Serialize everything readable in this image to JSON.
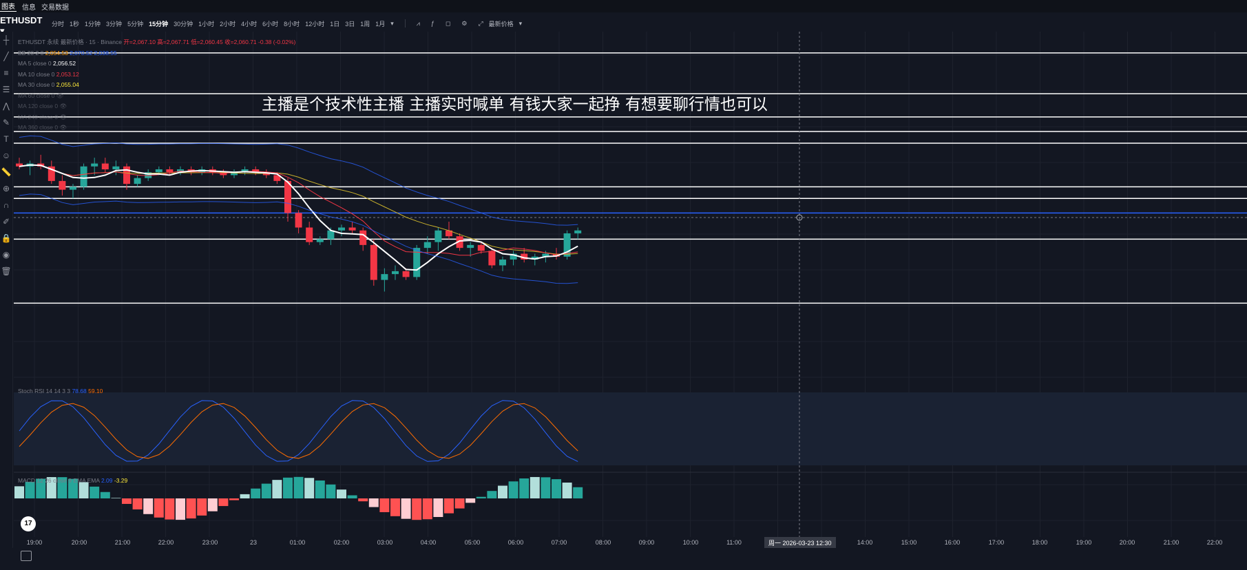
{
  "top_tabs": [
    "图表",
    "信息",
    "交易数据"
  ],
  "symbol": {
    "name": "ETHUSDT",
    "sub": "永续"
  },
  "toolbar": {
    "timeframes": [
      "分时",
      "1秒",
      "1分钟",
      "3分钟",
      "5分钟",
      "15分钟",
      "30分钟",
      "1小时",
      "2小时",
      "4小时",
      "6小时",
      "8小时",
      "12小时",
      "1日",
      "3日",
      "1周",
      "1月"
    ],
    "active": "15分钟",
    "price_type": "最新价格"
  },
  "legend": {
    "header": "ETHUSDT 永续 最新价格 · 15 · Binance",
    "ohlc": "开=2,067.10 高=2,067.71 低=2,060.45 收=2,060.71 -0.38 (-0.02%)",
    "bb": {
      "label": "BB 20 2 0",
      "v1": "2,054.53",
      "v2": "2,070.52",
      "v3": "2,038.55"
    },
    "ma5": {
      "label": "MA 5 close 0",
      "value": "2,056.52"
    },
    "ma10": {
      "label": "MA 10 close 0",
      "value": "2,053.12"
    },
    "ma30": {
      "label": "MA 30 close 0",
      "value": "2,055.04"
    },
    "ma60": {
      "label": "MA 60 close 0"
    },
    "ma120": {
      "label": "MA 120 close 0"
    },
    "ma240": {
      "label": "MA 240 close 0"
    },
    "ma360": {
      "label": "MA 360 close 0"
    }
  },
  "overlay_text": "主播是个技术性主播 主播实时喊单 有钱大家一起挣 有想要聊行情也可以",
  "stoch": {
    "label": "Stoch RSI 14 14 3 3",
    "k": "78.68",
    "d": "59.10"
  },
  "macd": {
    "label": "MACD 12 26 close 9 EMA EMA",
    "v1": "2.09",
    "v2": "-3.29"
  },
  "time_axis": [
    "19:00",
    "20:00",
    "21:00",
    "22:00",
    "23:00",
    "23",
    "01:00",
    "02:00",
    "03:00",
    "04:00",
    "05:00",
    "06:00",
    "07:00",
    "08:00",
    "09:00",
    "10:00",
    "11:00",
    "14:00",
    "15:00",
    "16:00",
    "17:00",
    "18:00",
    "19:00",
    "20:00",
    "21:00",
    "22:00"
  ],
  "crosshair_time": "周一 2026-03-23   12:30",
  "logo_text": "17",
  "colors": {
    "up": "#26a69a",
    "down": "#f23645",
    "bg": "#131722"
  },
  "chart_data": {
    "type": "candlestick",
    "candles_ohlc": [
      [
        2070,
        2072,
        2068,
        2069
      ],
      [
        2069,
        2071,
        2066,
        2070
      ],
      [
        2070,
        2073,
        2068,
        2069
      ],
      [
        2069,
        2071,
        2063,
        2064
      ],
      [
        2064,
        2066,
        2059,
        2061
      ],
      [
        2061,
        2063,
        2058,
        2062
      ],
      [
        2062,
        2070,
        2061,
        2069
      ],
      [
        2069,
        2072,
        2066,
        2070
      ],
      [
        2070,
        2072,
        2067,
        2068
      ],
      [
        2068,
        2071,
        2066,
        2069
      ],
      [
        2069,
        2070,
        2061,
        2063
      ],
      [
        2063,
        2066,
        2062,
        2065
      ],
      [
        2065,
        2068,
        2064,
        2067
      ],
      [
        2067,
        2069,
        2066,
        2068
      ],
      [
        2068,
        2069,
        2066,
        2067
      ],
      [
        2067,
        2069,
        2066,
        2068
      ],
      [
        2068,
        2069,
        2066,
        2067
      ],
      [
        2067,
        2069,
        2066,
        2068
      ],
      [
        2068,
        2069,
        2066,
        2067
      ],
      [
        2067,
        2068,
        2065,
        2066
      ],
      [
        2066,
        2068,
        2065,
        2067
      ],
      [
        2067,
        2069,
        2066,
        2068
      ],
      [
        2068,
        2069,
        2066,
        2067
      ],
      [
        2067,
        2068,
        2065,
        2066
      ],
      [
        2066,
        2067,
        2063,
        2064
      ],
      [
        2064,
        2065,
        2050,
        2053
      ],
      [
        2053,
        2054,
        2046,
        2048
      ],
      [
        2048,
        2050,
        2042,
        2043
      ],
      [
        2043,
        2045,
        2042,
        2044
      ],
      [
        2044,
        2048,
        2042,
        2047
      ],
      [
        2047,
        2049,
        2045,
        2048
      ],
      [
        2048,
        2050,
        2046,
        2047
      ],
      [
        2047,
        2048,
        2040,
        2042
      ],
      [
        2042,
        2044,
        2028,
        2030
      ],
      [
        2030,
        2034,
        2026,
        2032
      ],
      [
        2032,
        2035,
        2030,
        2033
      ],
      [
        2033,
        2034,
        2030,
        2031
      ],
      [
        2031,
        2042,
        2030,
        2041
      ],
      [
        2041,
        2045,
        2039,
        2043
      ],
      [
        2043,
        2048,
        2040,
        2047
      ],
      [
        2047,
        2050,
        2044,
        2045
      ],
      [
        2045,
        2046,
        2040,
        2041
      ],
      [
        2041,
        2043,
        2038,
        2042
      ],
      [
        2042,
        2043,
        2039,
        2040
      ],
      [
        2040,
        2041,
        2034,
        2035
      ],
      [
        2035,
        2038,
        2033,
        2037
      ],
      [
        2037,
        2040,
        2035,
        2039
      ],
      [
        2039,
        2041,
        2036,
        2037
      ],
      [
        2037,
        2039,
        2035,
        2038
      ],
      [
        2038,
        2040,
        2036,
        2039
      ],
      [
        2039,
        2041,
        2037,
        2038
      ],
      [
        2038,
        2047,
        2037,
        2046
      ],
      [
        2046,
        2048,
        2044,
        2047
      ]
    ],
    "horizontal_levels": [
      2108,
      2094,
      2086,
      2081,
      2077,
      2062,
      2058,
      2044,
      2022
    ],
    "ylim": [
      2015,
      2112
    ]
  }
}
